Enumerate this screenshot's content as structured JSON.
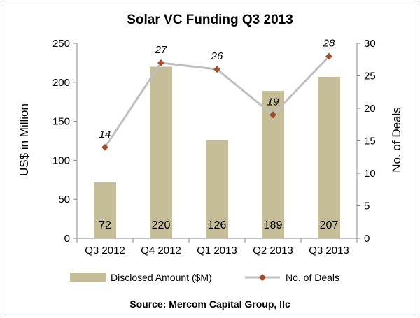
{
  "chart_data": {
    "type": "bar+line",
    "title": "Solar VC Funding Q3 2013",
    "source": "Source: Mercom Capital Group, llc",
    "categories": [
      "Q3 2012",
      "Q4 2012",
      "Q1 2013",
      "Q2 2013",
      "Q3 2013"
    ],
    "series": [
      {
        "name": "Disclosed Amount ($M)",
        "type": "bar",
        "axis": "left",
        "values": [
          72,
          220,
          126,
          189,
          207
        ],
        "color": "#c4bd97"
      },
      {
        "name": "No. of Deals",
        "type": "line",
        "axis": "right",
        "values": [
          14,
          27,
          26,
          19,
          28
        ],
        "line_color": "#bfbfbf",
        "marker_color": "#a0522d"
      }
    ],
    "y_left": {
      "label": "US$ in Million",
      "min": 0,
      "max": 250,
      "ticks": [
        0,
        50,
        100,
        150,
        200,
        250
      ]
    },
    "y_right": {
      "label": "No. of Deals",
      "min": 0,
      "max": 30,
      "ticks": [
        0,
        5,
        10,
        15,
        20,
        25,
        30
      ]
    },
    "grid": false,
    "legend_position": "bottom"
  }
}
